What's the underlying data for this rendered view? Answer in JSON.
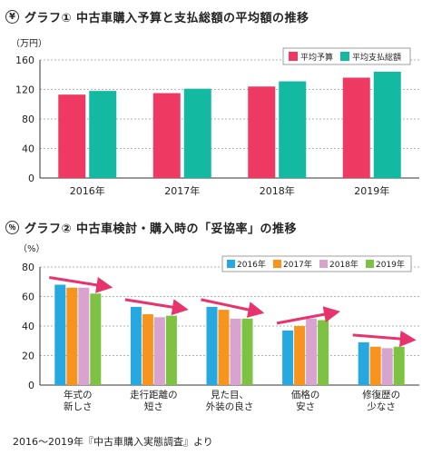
{
  "charts": [
    {
      "title": "グラフ① 中古車購入予算と支払総額の平均額の推移",
      "icon": "yen-coin-icon",
      "unit": "（万円）"
    },
    {
      "title": "グラフ② 中古車検討・購入時の「妥協率」の推移",
      "icon": "percent-person-icon",
      "unit": "（%）"
    }
  ],
  "source": "2016～2019年『中古車購入実態調査』より",
  "chart_data": [
    {
      "type": "bar",
      "title": "グラフ① 中古車購入予算と支払総額の平均額の推移",
      "ylabel": "（万円）",
      "categories": [
        "2016年",
        "2017年",
        "2018年",
        "2019年"
      ],
      "series": [
        {
          "name": "平均予算",
          "color": "#ee3a63",
          "values": [
            113,
            115,
            124,
            136
          ]
        },
        {
          "name": "平均支払総額",
          "color": "#14b9a2",
          "values": [
            118,
            121,
            131,
            144
          ]
        }
      ],
      "ylim": [
        0,
        160
      ],
      "yticks": [
        0,
        40,
        80,
        120,
        160
      ],
      "grid": true,
      "legend": "top-right"
    },
    {
      "type": "bar",
      "title": "グラフ② 中古車検討・購入時の「妥協率」の推移",
      "ylabel": "（%）",
      "categories": [
        [
          "年式の",
          "新しさ"
        ],
        [
          "走行距離の",
          "短さ"
        ],
        [
          "見た目、",
          "外装の良さ"
        ],
        [
          "価格の",
          "安さ"
        ],
        [
          "修復歴の",
          "少なさ"
        ]
      ],
      "series": [
        {
          "name": "2016年",
          "color": "#26a9e1",
          "values": [
            68,
            53,
            53,
            37,
            29
          ]
        },
        {
          "name": "2017年",
          "color": "#f7941d",
          "values": [
            66,
            48,
            51,
            40,
            26
          ]
        },
        {
          "name": "2018年",
          "color": "#d9a3cf",
          "values": [
            66,
            46,
            45,
            45,
            25
          ]
        },
        {
          "name": "2019年",
          "color": "#7dc242",
          "values": [
            62,
            47,
            45,
            44,
            26
          ]
        }
      ],
      "ylim": [
        0,
        80
      ],
      "yticks": [
        0,
        20,
        40,
        60,
        80
      ],
      "grid": true,
      "legend": "top-right",
      "arrow_color": "#e8336d"
    }
  ]
}
